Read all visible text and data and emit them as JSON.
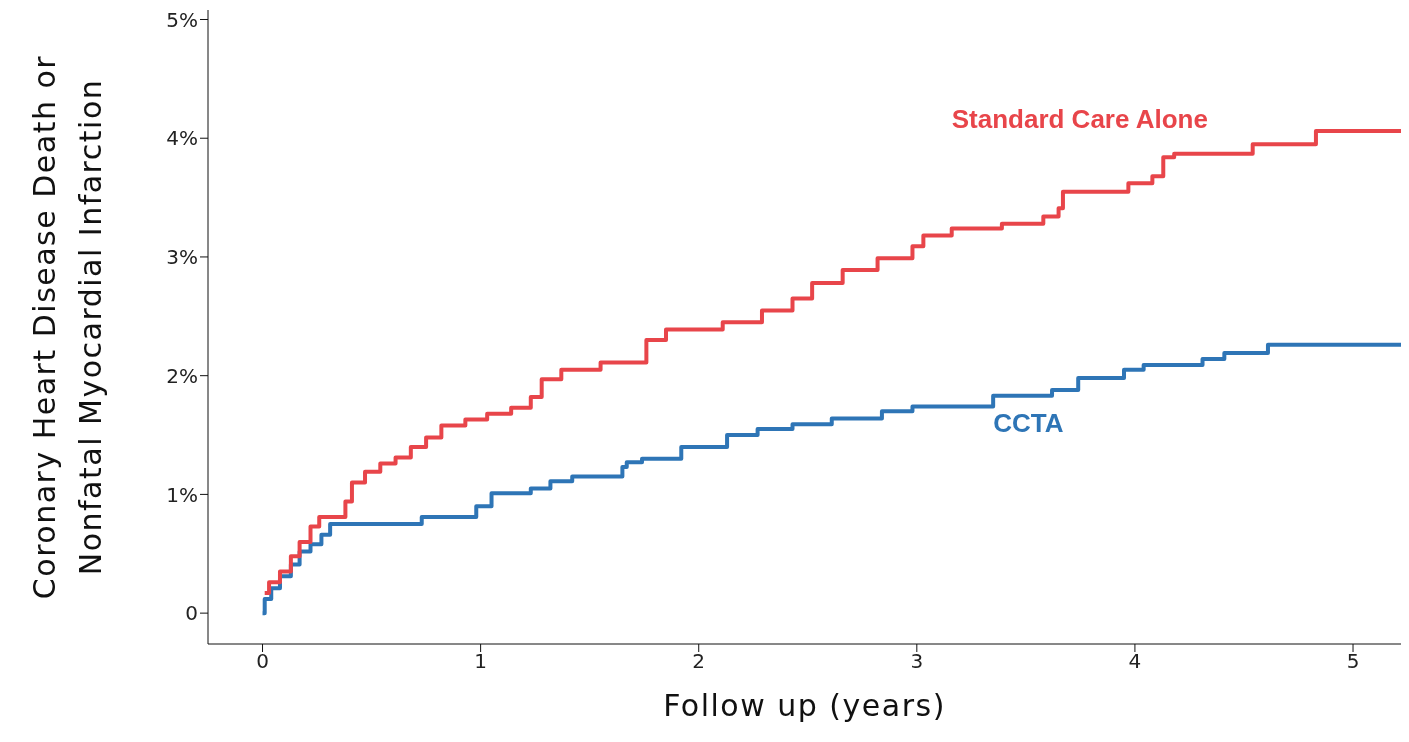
{
  "chart_data": {
    "type": "step",
    "xlabel": "Follow up (years)",
    "ylabel": "Coronary Heart Disease Death or Nonfatal Myocardial Infarction",
    "xlim": [
      -0.25,
      5.22
    ],
    "xticks": [
      0,
      1,
      2,
      3,
      4,
      5
    ],
    "ylim": [
      -0.26,
      5.08
    ],
    "yticks": [
      0,
      {
        "value": 1,
        "label": "1%"
      },
      {
        "value": 2,
        "label": "2%"
      },
      {
        "value": 3,
        "label": "3%"
      },
      {
        "value": 4,
        "label": "4%"
      },
      {
        "value": 5,
        "label": "5%"
      }
    ],
    "grid": false,
    "legend": false,
    "series": [
      {
        "name": "Standard Care Alone",
        "color": "#e8454a",
        "x": [
          0.01,
          0.03,
          0.08,
          0.13,
          0.17,
          0.22,
          0.26,
          0.38,
          0.41,
          0.47,
          0.54,
          0.61,
          0.68,
          0.75,
          0.82,
          0.93,
          1.03,
          1.14,
          1.23,
          1.28,
          1.37,
          1.55,
          1.76,
          1.85,
          2.11,
          2.29,
          2.43,
          2.52,
          2.66,
          2.82,
          2.98,
          3.03,
          3.16,
          3.39,
          3.58,
          3.65,
          3.67,
          3.97,
          4.08,
          4.13,
          4.18,
          4.54,
          4.83,
          5.22
        ],
        "values": [
          0.17,
          0.26,
          0.35,
          0.48,
          0.6,
          0.73,
          0.81,
          0.94,
          1.1,
          1.19,
          1.26,
          1.31,
          1.4,
          1.48,
          1.58,
          1.63,
          1.68,
          1.73,
          1.82,
          1.97,
          2.05,
          2.11,
          2.3,
          2.39,
          2.45,
          2.55,
          2.65,
          2.78,
          2.89,
          2.99,
          3.09,
          3.18,
          3.24,
          3.28,
          3.34,
          3.41,
          3.55,
          3.62,
          3.68,
          3.84,
          3.87,
          3.95,
          4.06,
          4.06
        ]
      },
      {
        "name": "CCTA",
        "color": "#2e75b6",
        "x": [
          0,
          0.01,
          0.04,
          0.08,
          0.13,
          0.17,
          0.22,
          0.27,
          0.31,
          0.73,
          0.98,
          1.05,
          1.23,
          1.32,
          1.42,
          1.65,
          1.67,
          1.74,
          1.92,
          2.13,
          2.27,
          2.43,
          2.61,
          2.84,
          2.98,
          3.35,
          3.62,
          3.74,
          3.95,
          4.04,
          4.31,
          4.41,
          4.61,
          5.22
        ],
        "values": [
          0,
          0.12,
          0.21,
          0.31,
          0.41,
          0.52,
          0.58,
          0.66,
          0.75,
          0.81,
          0.9,
          1.01,
          1.05,
          1.11,
          1.15,
          1.23,
          1.27,
          1.3,
          1.4,
          1.5,
          1.55,
          1.59,
          1.64,
          1.7,
          1.74,
          1.83,
          1.88,
          1.98,
          2.05,
          2.09,
          2.14,
          2.19,
          2.26,
          2.26
        ]
      }
    ]
  }
}
